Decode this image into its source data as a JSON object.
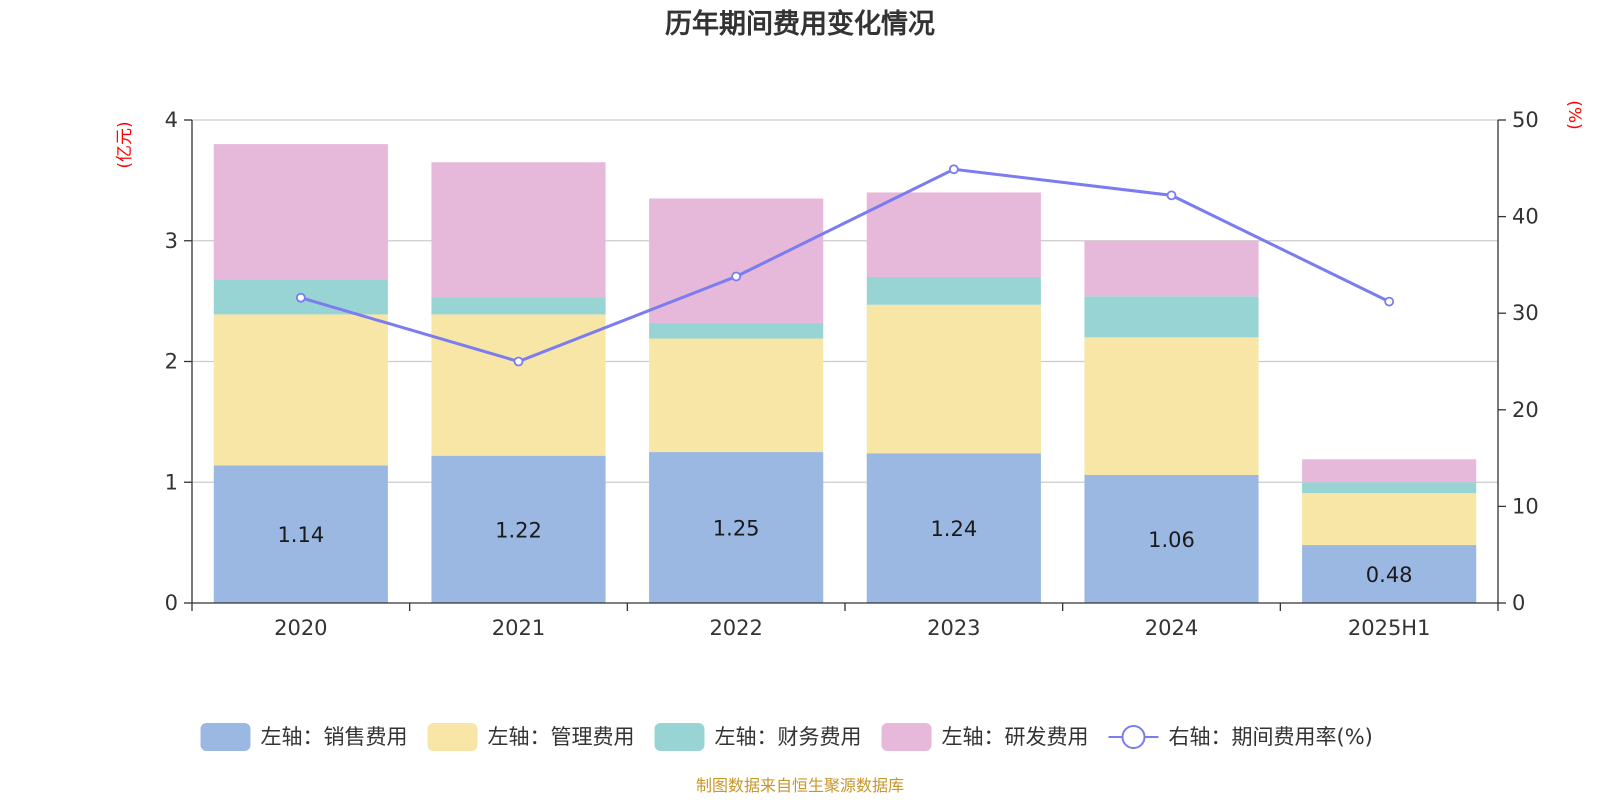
{
  "chart_data": {
    "type": "bar",
    "title": "历年期间费用变化情况",
    "categories": [
      "2020",
      "2021",
      "2022",
      "2023",
      "2024",
      "2025H1"
    ],
    "left_axis": {
      "unit": "(亿元)",
      "ylim": [
        0,
        4
      ],
      "ticks": [
        0,
        1,
        2,
        3,
        4
      ]
    },
    "right_axis": {
      "unit": "(%)",
      "ylim": [
        0,
        50
      ],
      "ticks": [
        0,
        10,
        20,
        30,
        40,
        50
      ]
    },
    "series": [
      {
        "name": "左轴：销售费用",
        "kind": "bar",
        "axis": "left",
        "color": "#9bb8e3",
        "values": [
          1.14,
          1.22,
          1.25,
          1.24,
          1.06,
          0.48
        ],
        "labels": [
          "1.14",
          "1.22",
          "1.25",
          "1.24",
          "1.06",
          "0.48"
        ]
      },
      {
        "name": "左轴：管理费用",
        "kind": "bar",
        "axis": "left",
        "color": "#f7e6a6",
        "values": [
          1.25,
          1.17,
          0.94,
          1.23,
          1.14,
          0.43
        ]
      },
      {
        "name": "左轴：财务费用",
        "kind": "bar",
        "axis": "left",
        "color": "#98d4d4",
        "values": [
          0.29,
          0.14,
          0.13,
          0.23,
          0.34,
          0.09
        ]
      },
      {
        "name": "左轴：研发费用",
        "kind": "bar",
        "axis": "left",
        "color": "#e6b8da",
        "values": [
          1.12,
          1.12,
          1.03,
          0.7,
          0.46,
          0.19
        ]
      },
      {
        "name": "右轴：期间费用率(%)",
        "kind": "line",
        "axis": "right",
        "color": "#7b7cf0",
        "values": [
          31.6,
          25.0,
          33.8,
          44.9,
          42.2,
          31.2
        ]
      }
    ],
    "grid": true,
    "legend_position": "bottom"
  },
  "source_note": "制图数据来自恒生聚源数据库"
}
